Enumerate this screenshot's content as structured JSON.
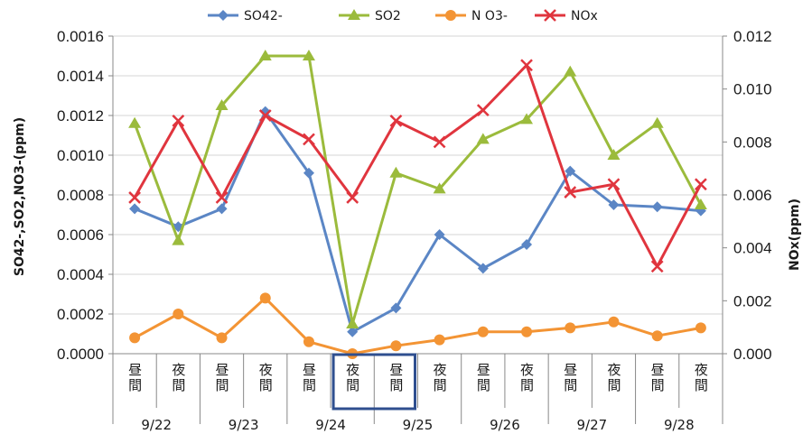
{
  "chart_data": {
    "type": "line",
    "y_left": {
      "label": "SO42-,SO2,NO3-(ppm)",
      "min": 0,
      "max": 0.0016,
      "ticks": [
        "0.0000",
        "0.0002",
        "0.0004",
        "0.0006",
        "0.0008",
        "0.0010",
        "0.0012",
        "0.0014",
        "0.0016"
      ]
    },
    "y_right": {
      "label": "NOx(ppm)",
      "min": 0,
      "max": 0.012,
      "ticks": [
        "0.000",
        "0.002",
        "0.004",
        "0.006",
        "0.008",
        "0.010",
        "0.012"
      ]
    },
    "categories": [
      "昼間",
      "夜間",
      "昼間",
      "夜間",
      "昼間",
      "夜間",
      "昼間",
      "夜間",
      "昼間",
      "夜間",
      "昼間",
      "夜間",
      "昼間",
      "夜間"
    ],
    "days": [
      "9/22",
      "9/23",
      "9/24",
      "9/25",
      "9/26",
      "9/27",
      "9/28"
    ],
    "legend_position": "top",
    "grid": true,
    "highlight": {
      "from_index": 5,
      "to_index": 6,
      "color": "#2f4f8f"
    },
    "series": [
      {
        "name": "SO42-",
        "axis": "left",
        "color": "#5b86c5",
        "marker": "diamond",
        "values": [
          0.00073,
          0.00064,
          0.00073,
          0.00122,
          0.00091,
          0.00011,
          0.00023,
          0.0006,
          0.00043,
          0.00055,
          0.00092,
          0.00075,
          0.00074,
          0.00072
        ]
      },
      {
        "name": "SO2",
        "axis": "left",
        "color": "#9bbb3c",
        "marker": "triangle",
        "values": [
          0.00116,
          0.00057,
          0.00125,
          0.0015,
          0.0015,
          0.00015,
          0.00091,
          0.00083,
          0.00108,
          0.00118,
          0.00142,
          0.001,
          0.00116,
          0.00075
        ]
      },
      {
        "name": "N O3-",
        "axis": "left",
        "color": "#f39434",
        "marker": "circle",
        "values": [
          8e-05,
          0.0002,
          8e-05,
          0.00028,
          6e-05,
          0.0,
          4e-05,
          7e-05,
          0.00011,
          0.00011,
          0.00013,
          0.00016,
          9e-05,
          0.00013
        ]
      },
      {
        "name": "NOx",
        "axis": "right",
        "color": "#e0353e",
        "marker": "x",
        "values": [
          0.0059,
          0.0088,
          0.0059,
          0.009,
          0.0081,
          0.0059,
          0.0088,
          0.008,
          0.0092,
          0.0109,
          0.0061,
          0.0064,
          0.0033,
          0.0064
        ]
      }
    ]
  }
}
